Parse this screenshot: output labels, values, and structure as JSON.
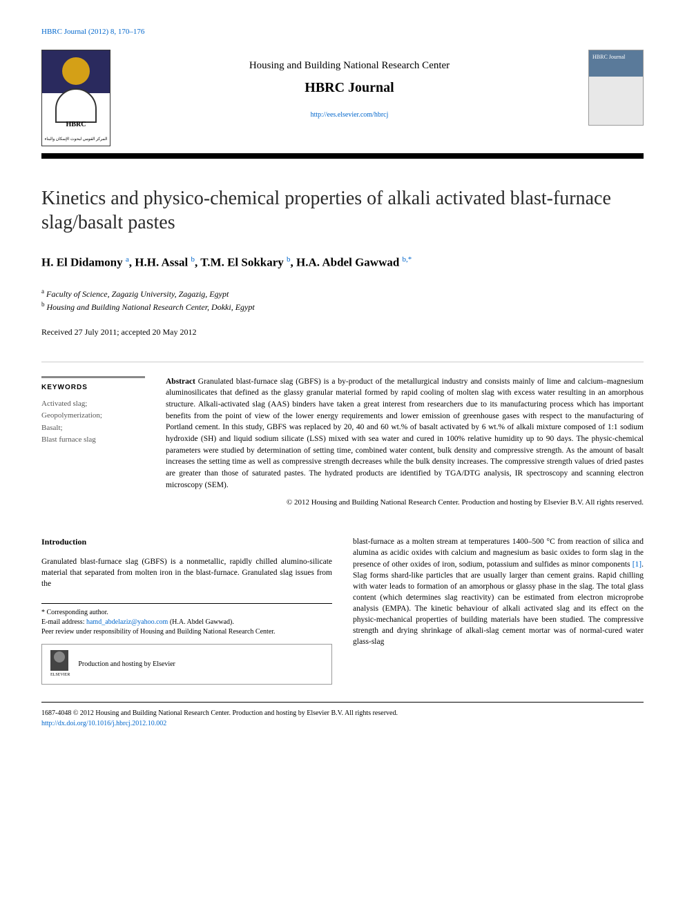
{
  "running_header": "HBRC Journal (2012) 8, 170–176",
  "masthead": {
    "publisher": "Housing and Building National Research Center",
    "journal": "HBRC Journal",
    "url": "http://ees.elsevier.com/hbrcj",
    "logo_label": "HBRC",
    "logo_caption": "المركز القومي لبحوث الإسكان والبناء",
    "cover_title": "HBRC Journal"
  },
  "article": {
    "title": "Kinetics and physico-chemical properties of alkali activated blast-furnace slag/basalt pastes",
    "authors_html": "H. El Didamony <sup>a</sup>, H.H. Assal <sup>b</sup>, T.M. El Sokkary <sup>b</sup>, H.A. Abdel Gawwad <sup>b,*</sup>",
    "affiliations": {
      "a": "Faculty of Science, Zagazig University, Zagazig, Egypt",
      "b": "Housing and Building National Research Center, Dokki, Egypt"
    },
    "dates": "Received 27 July 2011; accepted 20 May 2012"
  },
  "keywords": {
    "heading": "KEYWORDS",
    "items": [
      "Activated slag;",
      "Geopolymerization;",
      "Basalt;",
      "Blast furnace slag"
    ]
  },
  "abstract": {
    "label": "Abstract",
    "text": "Granulated blast-furnace slag (GBFS) is a by-product of the metallurgical industry and consists mainly of lime and calcium–magnesium aluminosilicates that defined as the glassy granular material formed by rapid cooling of molten slag with excess water resulting in an amorphous structure. Alkali-activated slag (AAS) binders have taken a great interest from researchers due to its manufacturing process which has important benefits from the point of view of the lower energy requirements and lower emission of greenhouse gases with respect to the manufacturing of Portland cement. In this study, GBFS was replaced by 20, 40 and 60 wt.% of basalt activated by 6 wt.% of alkali mixture composed of 1:1 sodium hydroxide (SH) and liquid sodium silicate (LSS) mixed with sea water and cured in 100% relative humidity up to 90 days. The physic-chemical parameters were studied by determination of setting time, combined water content, bulk density and compressive strength. As the amount of basalt increases the setting time as well as compressive strength decreases while the bulk density increases. The compressive strength values of dried pastes are greater than those of saturated pastes. The hydrated products are identified by TGA/DTG analysis, IR spectroscopy and scanning electron microscopy (SEM).",
    "copyright": "© 2012 Housing and Building National Research Center. Production and hosting by Elsevier B.V. All rights reserved."
  },
  "body": {
    "intro_heading": "Introduction",
    "col1_p1": "Granulated blast-furnace slag (GBFS) is a nonmetallic, rapidly chilled alumino-silicate material that separated from molten iron in the blast-furnace. Granulated slag issues from the",
    "col2_p1": "blast-furnace as a molten stream at temperatures 1400–500 °C from reaction of silica and alumina as acidic oxides with calcium and magnesium as basic oxides to form slag in the presence of other oxides of iron, sodium, potassium and sulfides as minor components ",
    "ref1": "[1]",
    "col2_p1_cont": ". Slag forms shard-like particles that are usually larger than cement grains. Rapid chilling with water leads to formation of an amorphous or glassy phase in the slag. The total glass content (which determines slag reactivity) can be estimated from electron microprobe analysis (EMPA). The kinetic behaviour of alkali activated slag and its effect on the physic-mechanical properties of building materials have been studied. The compressive strength and drying shrinkage of alkali-slag cement mortar was of normal-cured water glass-slag"
  },
  "footnote": {
    "corresponding": "* Corresponding author.",
    "email_label": "E-mail address: ",
    "email": "hamd_abdelaziz@yahoo.com",
    "email_paren": " (H.A. Abdel Gawwad).",
    "peer_review": "Peer review under responsibility of Housing and Building National Research Center.",
    "hosting": "Production and hosting by Elsevier",
    "elsevier_label": "ELSEVIER"
  },
  "footer": {
    "issn_line": "1687-4048 © 2012 Housing and Building National Research Center. Production and hosting by Elsevier B.V. All rights reserved.",
    "doi": "http://dx.doi.org/10.1016/j.hbrcj.2012.10.002"
  },
  "colors": {
    "link": "#0066cc",
    "text": "#000000",
    "divider": "#000000"
  }
}
